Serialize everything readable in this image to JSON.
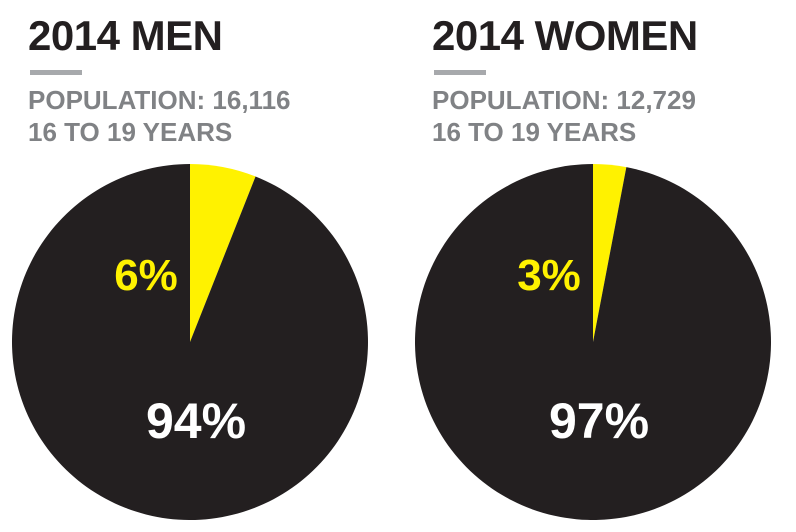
{
  "chart_data": [
    {
      "type": "pie",
      "title": "2014 MEN",
      "population_label": "POPULATION: 16,116",
      "age_label": "16 TO 19 YEARS",
      "slices": [
        {
          "label": "6%",
          "value": 6,
          "color": "#fff200"
        },
        {
          "label": "94%",
          "value": 94,
          "color": "#231f20"
        }
      ]
    },
    {
      "type": "pie",
      "title": "2014 WOMEN",
      "population_label": "POPULATION: 12,729",
      "age_label": "16 TO 19 YEARS",
      "slices": [
        {
          "label": "3%",
          "value": 3,
          "color": "#fff200"
        },
        {
          "label": "97%",
          "value": 97,
          "color": "#231f20"
        }
      ]
    }
  ]
}
